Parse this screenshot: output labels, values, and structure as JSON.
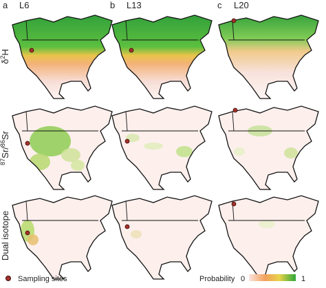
{
  "panels": [
    {
      "letter": "a",
      "title": "L6"
    },
    {
      "letter": "b",
      "title": "L13"
    },
    {
      "letter": "c",
      "title": "L20"
    }
  ],
  "rows": [
    {
      "label": [
        {
          "text": "δ"
        },
        {
          "text": "2",
          "sup": true
        },
        {
          "text": "H"
        }
      ]
    },
    {
      "label": [
        {
          "text": "87",
          "sup": true
        },
        {
          "text": "Sr/"
        },
        {
          "text": "86",
          "sup": true
        },
        {
          "text": "Sr"
        }
      ]
    },
    {
      "label": [
        {
          "text": "Dual isotope"
        }
      ]
    }
  ],
  "legend": {
    "sites": "Sampling sites",
    "probability": "Probability",
    "min": "0",
    "max": "1"
  }
}
